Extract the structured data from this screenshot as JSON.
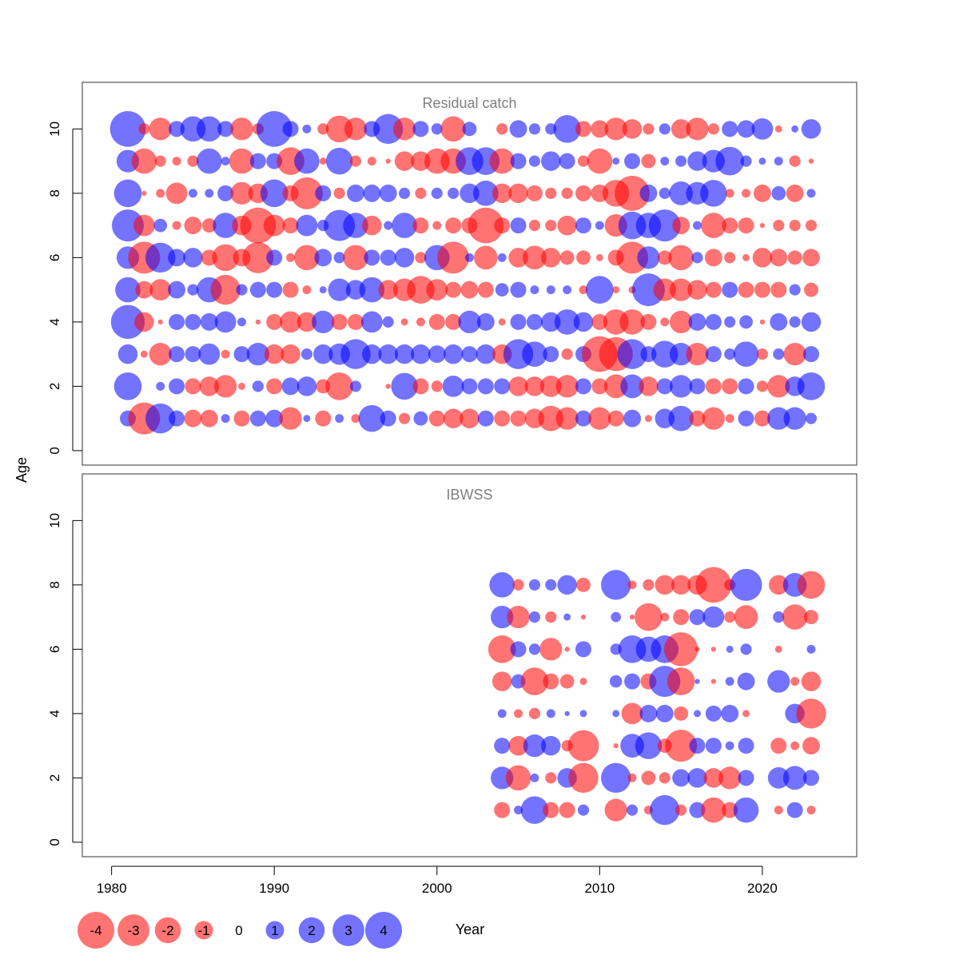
{
  "chart_data": {
    "type": "bubble",
    "xlabel": "Year",
    "ylabel": "Age",
    "x_ticks": [
      1980,
      1990,
      2000,
      2010,
      2020
    ],
    "y_ticks": [
      0,
      2,
      4,
      6,
      8,
      10
    ],
    "xlim": [
      1978.2,
      2025.8
    ],
    "ylim": [
      -0.45,
      11.45
    ],
    "colors": {
      "positive": "#0000ff",
      "negative": "#ff0000",
      "alpha": 0.55
    },
    "legend": {
      "placement": "bottom-left",
      "entries": [
        {
          "label": "-4",
          "value": -4
        },
        {
          "label": "-3",
          "value": -3
        },
        {
          "label": "-2",
          "value": -2
        },
        {
          "label": "-1",
          "value": -1
        },
        {
          "label": "0",
          "value": 0
        },
        {
          "label": "1",
          "value": 1
        },
        {
          "label": "2",
          "value": 2
        },
        {
          "label": "3",
          "value": 3
        },
        {
          "label": "4",
          "value": 4
        }
      ]
    },
    "panels": [
      {
        "title": "Residual catch",
        "years": [
          1981,
          1982,
          1983,
          1984,
          1985,
          1986,
          1987,
          1988,
          1989,
          1990,
          1991,
          1992,
          1993,
          1994,
          1995,
          1996,
          1997,
          1998,
          1999,
          2000,
          2001,
          2002,
          2003,
          2004,
          2005,
          2006,
          2007,
          2008,
          2009,
          2010,
          2011,
          2012,
          2013,
          2014,
          2015,
          2016,
          2017,
          2018,
          2019,
          2020,
          2021,
          2022,
          2023
        ],
        "ages": [
          1,
          2,
          3,
          4,
          5,
          6,
          7,
          8,
          9,
          10
        ],
        "residuals": {
          "1": [
            1.0,
            -4.0,
            3.5,
            1.0,
            -1.2,
            -1.2,
            0.3,
            -1.0,
            1.0,
            1.2,
            -2.0,
            0.2,
            -1.0,
            0.3,
            -0.3,
            2.8,
            1.0,
            -0.5,
            0.8,
            -1.0,
            -1.5,
            -1.5,
            1.0,
            -1.0,
            -1.0,
            -1.5,
            -2.5,
            -2.0,
            1.0,
            -2.0,
            -1.0,
            1.2,
            -0.2,
            1.5,
            2.5,
            -1.0,
            -2.0,
            -0.3,
            1.0,
            -1.0,
            2.0,
            2.0,
            0.5
          ],
          "2": [
            3.0,
            0.0,
            0.3,
            1.0,
            -1.0,
            -1.5,
            -2.0,
            -0.2,
            0.5,
            -1.0,
            1.2,
            1.5,
            -0.8,
            -3.0,
            0.5,
            0.0,
            -0.1,
            2.8,
            -1.0,
            -0.5,
            1.8,
            1.0,
            1.0,
            1.0,
            -1.5,
            -1.5,
            -1.8,
            -2.0,
            1.0,
            -1.0,
            -2.2,
            2.2,
            -1.5,
            1.0,
            2.0,
            1.0,
            -1.0,
            -1.0,
            1.0,
            -0.5,
            -2.0,
            1.5,
            3.0
          ],
          "3": [
            1.5,
            -0.2,
            -2.0,
            1.0,
            1.0,
            1.8,
            -0.3,
            1.0,
            2.0,
            -1.5,
            -1.5,
            0.5,
            1.5,
            1.8,
            3.5,
            1.5,
            1.5,
            1.5,
            1.5,
            1.2,
            1.5,
            1.0,
            1.5,
            -1.5,
            3.5,
            2.5,
            1.0,
            -0.5,
            1.0,
            -5.0,
            -4.5,
            3.5,
            1.0,
            2.8,
            2.0,
            -2.0,
            1.0,
            0.5,
            2.5,
            -0.5,
            0.5,
            -2.0,
            1.0
          ],
          "4": [
            4.5,
            -1.5,
            -0.1,
            1.0,
            1.0,
            1.2,
            1.8,
            0.3,
            -0.1,
            -1.0,
            -1.8,
            -1.5,
            2.0,
            -1.0,
            -1.0,
            1.8,
            0.5,
            -0.2,
            -0.3,
            -1.0,
            -1.0,
            2.0,
            1.2,
            -0.2,
            1.0,
            1.0,
            1.5,
            2.5,
            1.5,
            -1.0,
            -2.5,
            -2.5,
            -1.0,
            -0.3,
            -2.0,
            1.2,
            1.0,
            0.5,
            0.7,
            -0.1,
            1.2,
            0.5,
            1.5
          ],
          "5": [
            2.5,
            -1.2,
            -1.8,
            1.2,
            0.5,
            2.5,
            -3.5,
            0.5,
            1.0,
            1.0,
            -1.0,
            -0.3,
            0.2,
            2.0,
            1.5,
            2.5,
            -1.5,
            -2.0,
            -3.0,
            -1.8,
            -1.0,
            -1.2,
            -1.0,
            0.7,
            1.0,
            0.3,
            0.3,
            0.3,
            -0.3,
            3.0,
            -0.2,
            -0.2,
            4.2,
            -2.0,
            -2.0,
            -1.5,
            -1.0,
            1.0,
            -1.0,
            -1.0,
            -1.0,
            0.5,
            -0.8
          ],
          "6": [
            2.0,
            -4.0,
            3.5,
            1.2,
            1.5,
            -1.0,
            -2.8,
            -1.2,
            -3.8,
            1.0,
            -0.3,
            -2.5,
            1.2,
            0.5,
            -2.5,
            1.0,
            1.0,
            1.5,
            -0.5,
            2.5,
            -4.0,
            0.3,
            -2.2,
            0.3,
            -1.5,
            -2.2,
            -1.5,
            -0.8,
            -0.8,
            -0.2,
            -1.0,
            -4.0,
            2.0,
            -0.8,
            -2.5,
            0.5,
            -1.2,
            -0.5,
            -0.2,
            -1.5,
            -1.2,
            -0.8,
            -1.2
          ],
          "7": [
            4.0,
            -1.8,
            0.7,
            -0.3,
            -1.2,
            -0.8,
            2.5,
            -1.5,
            -5.0,
            -1.8,
            -1.0,
            1.8,
            0.5,
            3.8,
            2.5,
            -1.5,
            0.3,
            2.5,
            -1.0,
            -0.3,
            -1.0,
            -1.0,
            -5.0,
            -1.0,
            1.0,
            -0.5,
            -0.5,
            -1.5,
            1.0,
            0.3,
            -2.0,
            3.0,
            2.5,
            4.0,
            -1.2,
            0.3,
            -2.5,
            -1.0,
            -1.0,
            -0.1,
            -0.5,
            -0.5,
            -0.5
          ],
          "8": [
            3.0,
            -0.1,
            -0.3,
            -1.8,
            0.3,
            0.3,
            1.0,
            -2.0,
            -1.5,
            3.0,
            -1.0,
            -4.0,
            1.0,
            -0.5,
            1.2,
            1.2,
            1.2,
            0.5,
            -0.5,
            0.5,
            0.5,
            1.5,
            2.5,
            -1.5,
            -1.5,
            -1.0,
            -0.5,
            -0.5,
            -1.0,
            -1.2,
            -2.8,
            -4.8,
            1.2,
            0.5,
            2.2,
            2.0,
            2.8,
            -0.3,
            -0.3,
            -1.2,
            0.8,
            -1.2,
            0.3
          ],
          "9": [
            2.0,
            -2.5,
            -0.5,
            -0.3,
            -0.5,
            2.5,
            0.3,
            -2.5,
            1.0,
            1.0,
            -3.0,
            2.5,
            -0.2,
            2.8,
            -0.5,
            -0.3,
            -0.1,
            -1.5,
            -1.5,
            -2.5,
            -2.5,
            3.0,
            3.0,
            -2.5,
            1.0,
            0.5,
            1.5,
            1.0,
            -0.5,
            -2.5,
            0.2,
            1.0,
            -0.8,
            0.3,
            0.5,
            1.5,
            2.0,
            3.2,
            0.5,
            0.2,
            0.3,
            -0.5,
            -0.1
          ],
          "10": [
            5.0,
            -0.5,
            -2.0,
            1.0,
            2.5,
            2.5,
            1.0,
            -2.0,
            -0.5,
            5.0,
            1.0,
            0.3,
            -0.5,
            -2.8,
            -2.0,
            1.0,
            3.5,
            -2.0,
            1.0,
            0.5,
            -2.5,
            0.8,
            0.0,
            -0.5,
            1.2,
            0.5,
            0.5,
            3.0,
            -1.0,
            -1.2,
            -2.0,
            -1.5,
            -0.5,
            0.5,
            -1.5,
            -2.0,
            -0.5,
            1.0,
            1.2,
            1.8,
            -0.2,
            0.2,
            1.5
          ]
        }
      },
      {
        "title": "IBWSS",
        "years": [
          2004,
          2005,
          2006,
          2007,
          2008,
          2009,
          2011,
          2012,
          2013,
          2014,
          2015,
          2016,
          2017,
          2018,
          2019,
          2021,
          2022,
          2023
        ],
        "ages": [
          1,
          2,
          3,
          4,
          5,
          6,
          7,
          8
        ],
        "residuals": {
          "1": [
            -1.0,
            0.3,
            3.0,
            -1.0,
            -1.0,
            0.5,
            -2.0,
            0.5,
            -0.3,
            3.5,
            -0.5,
            1.0,
            -2.5,
            -1.0,
            2.5,
            -0.3,
            1.0,
            -0.3
          ],
          "2": [
            2.0,
            -2.5,
            0.3,
            -0.5,
            1.5,
            -3.5,
            3.5,
            -0.3,
            -0.8,
            -0.5,
            1.2,
            1.5,
            -1.5,
            -2.0,
            1.0,
            1.8,
            2.2,
            1.0
          ],
          "3": [
            1.0,
            -1.5,
            2.0,
            1.5,
            -0.5,
            -3.8,
            -0.1,
            2.2,
            2.8,
            -0.8,
            -4.0,
            1.0,
            1.0,
            0.3,
            1.0,
            -1.0,
            -0.3,
            -1.2
          ],
          "4": [
            0.3,
            -0.3,
            -0.5,
            0.3,
            0.1,
            0.2,
            0.2,
            -1.8,
            1.2,
            1.2,
            -0.8,
            0.2,
            1.0,
            1.2,
            -0.2,
            0.0,
            1.5,
            -3.5
          ],
          "5": [
            -1.5,
            0.8,
            -3.0,
            -1.0,
            -0.8,
            -0.2,
            0.6,
            1.0,
            -1.0,
            3.8,
            -3.0,
            0.1,
            -0.1,
            0.3,
            1.2,
            2.0,
            -0.3,
            -1.5
          ],
          "6": [
            -3.0,
            1.0,
            0.5,
            -2.0,
            -0.1,
            1.0,
            0.5,
            3.0,
            2.5,
            3.0,
            -4.5,
            -0.1,
            -0.1,
            0.2,
            0.5,
            -0.2,
            0.0,
            0.3
          ],
          "7": [
            2.0,
            -2.0,
            0.5,
            -0.5,
            0.2,
            -0.1,
            0.4,
            -0.1,
            -3.0,
            -0.3,
            -1.0,
            1.0,
            1.8,
            -0.5,
            -2.2,
            0.5,
            -2.5,
            -0.8
          ],
          "8": [
            2.5,
            -0.5,
            0.5,
            0.5,
            1.5,
            -0.8,
            3.5,
            -0.3,
            -0.5,
            -1.5,
            -1.5,
            -1.5,
            -5.0,
            -0.5,
            4.0,
            -1.5,
            2.2,
            -3.0
          ]
        }
      }
    ]
  }
}
